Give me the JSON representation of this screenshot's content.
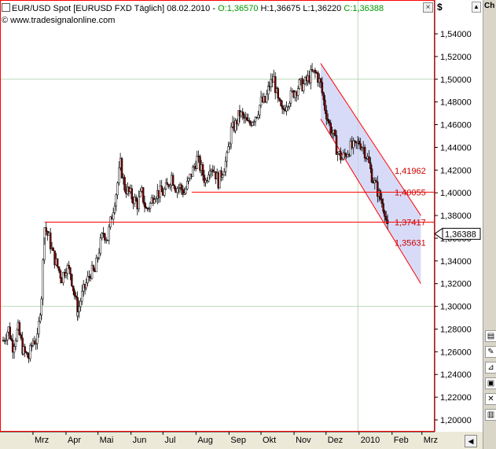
{
  "window": {
    "title": "EUR/USD Spot [EURUSD FXD  Täglich] 08.02.2010",
    "open_label": "O:1,36570",
    "high_label": "H:1,36675",
    "low_label": "L:1,36220",
    "close_label": "C:1,36388",
    "source": "© www.tradesignalonline.com",
    "unit": "$",
    "close_button": "×",
    "side_caption": "Ch"
  },
  "colors": {
    "background": "#ffffff",
    "frame": "#ff0000",
    "candle_up": "#ffffff",
    "candle_down": "#800000",
    "channel_line": "#ff0000",
    "channel_fill": "#c8ccf4",
    "grid": "#b9d8b9",
    "ohlc_green": "#009900"
  },
  "chart_data": {
    "type": "candlestick",
    "title": "EUR/USD Spot [EURUSD FXD  Täglich] 08.02.2010",
    "ylabel": "$",
    "ylim": [
      1.19,
      1.56
    ],
    "y_ticks": [
      "1,20000",
      "1,22000",
      "1,24000",
      "1,26000",
      "1,28000",
      "1,30000",
      "1,32000",
      "1,34000",
      "1,36000",
      "1,38000",
      "1,40000",
      "1,42000",
      "1,44000",
      "1,46000",
      "1,48000",
      "1,50000",
      "1,52000",
      "1,54000"
    ],
    "y_tick_values": [
      1.2,
      1.22,
      1.24,
      1.26,
      1.28,
      1.3,
      1.32,
      1.34,
      1.36,
      1.38,
      1.4,
      1.42,
      1.44,
      1.46,
      1.48,
      1.5,
      1.52,
      1.54
    ],
    "x_labels": [
      "Mrz",
      "Apr",
      "Mai",
      "Jun",
      "Jul",
      "Aug",
      "Sep",
      "Okt",
      "Nov",
      "Dez",
      "2010",
      "Feb",
      "Mrz"
    ],
    "x_label_days": [
      28,
      59,
      89,
      120,
      150,
      181,
      212,
      242,
      273,
      303,
      334,
      365,
      393
    ],
    "x_range_days": [
      0,
      405
    ],
    "grid_values": [
      1.3,
      1.5
    ],
    "grid_days": [
      333
    ],
    "current_price": {
      "label": "1,36388",
      "value": 1.36388
    },
    "horizontal_lines": [
      {
        "value": 1.40055,
        "from_day": 177,
        "label": "1,40055"
      },
      {
        "value": 1.37417,
        "from_day": 39,
        "label": "1,37417"
      }
    ],
    "price_labels": [
      {
        "value": 1.41962,
        "label": "1,41962"
      },
      {
        "value": 1.40055,
        "label": "1,40055"
      },
      {
        "value": 1.37417,
        "label": "1,37417"
      },
      {
        "value": 1.35631,
        "label": "1,35631"
      }
    ],
    "channel": {
      "upper": [
        [
          298,
          1.514
        ],
        [
          392,
          1.38
        ]
      ],
      "lower": [
        [
          298,
          1.465
        ],
        [
          392,
          1.32
        ]
      ]
    },
    "closes_weekly": [
      [
        0,
        1.27
      ],
      [
        5,
        1.28
      ],
      [
        9,
        1.265
      ],
      [
        14,
        1.28
      ],
      [
        19,
        1.26
      ],
      [
        24,
        1.255
      ],
      [
        28,
        1.27
      ],
      [
        32,
        1.27
      ],
      [
        36,
        1.31
      ],
      [
        39,
        1.37
      ],
      [
        43,
        1.36
      ],
      [
        47,
        1.345
      ],
      [
        51,
        1.335
      ],
      [
        55,
        1.325
      ],
      [
        59,
        1.335
      ],
      [
        63,
        1.33
      ],
      [
        67,
        1.31
      ],
      [
        70,
        1.295
      ],
      [
        74,
        1.31
      ],
      [
        78,
        1.32
      ],
      [
        82,
        1.33
      ],
      [
        86,
        1.33
      ],
      [
        90,
        1.35
      ],
      [
        94,
        1.365
      ],
      [
        98,
        1.36
      ],
      [
        102,
        1.38
      ],
      [
        106,
        1.4
      ],
      [
        110,
        1.425
      ],
      [
        114,
        1.405
      ],
      [
        118,
        1.4
      ],
      [
        122,
        1.395
      ],
      [
        126,
        1.39
      ],
      [
        130,
        1.4
      ],
      [
        134,
        1.385
      ],
      [
        138,
        1.39
      ],
      [
        142,
        1.4
      ],
      [
        146,
        1.4
      ],
      [
        150,
        1.4
      ],
      [
        154,
        1.405
      ],
      [
        158,
        1.415
      ],
      [
        162,
        1.405
      ],
      [
        166,
        1.405
      ],
      [
        170,
        1.4
      ],
      [
        174,
        1.41
      ],
      [
        178,
        1.42
      ],
      [
        182,
        1.43
      ],
      [
        186,
        1.42
      ],
      [
        190,
        1.41
      ],
      [
        194,
        1.425
      ],
      [
        198,
        1.42
      ],
      [
        202,
        1.41
      ],
      [
        206,
        1.42
      ],
      [
        210,
        1.43
      ],
      [
        214,
        1.455
      ],
      [
        218,
        1.46
      ],
      [
        222,
        1.47
      ],
      [
        226,
        1.465
      ],
      [
        230,
        1.46
      ],
      [
        234,
        1.465
      ],
      [
        238,
        1.47
      ],
      [
        242,
        1.48
      ],
      [
        246,
        1.48
      ],
      [
        250,
        1.495
      ],
      [
        254,
        1.5
      ],
      [
        258,
        1.48
      ],
      [
        262,
        1.47
      ],
      [
        266,
        1.48
      ],
      [
        270,
        1.485
      ],
      [
        274,
        1.49
      ],
      [
        278,
        1.495
      ],
      [
        282,
        1.495
      ],
      [
        286,
        1.5
      ],
      [
        290,
        1.505
      ],
      [
        294,
        1.505
      ],
      [
        298,
        1.495
      ],
      [
        302,
        1.475
      ],
      [
        306,
        1.46
      ],
      [
        310,
        1.45
      ],
      [
        314,
        1.435
      ],
      [
        318,
        1.43
      ],
      [
        322,
        1.435
      ],
      [
        326,
        1.44
      ],
      [
        330,
        1.44
      ],
      [
        334,
        1.445
      ],
      [
        338,
        1.44
      ],
      [
        342,
        1.43
      ],
      [
        346,
        1.415
      ],
      [
        350,
        1.405
      ],
      [
        354,
        1.395
      ],
      [
        358,
        1.385
      ],
      [
        362,
        1.36
      ]
    ]
  }
}
